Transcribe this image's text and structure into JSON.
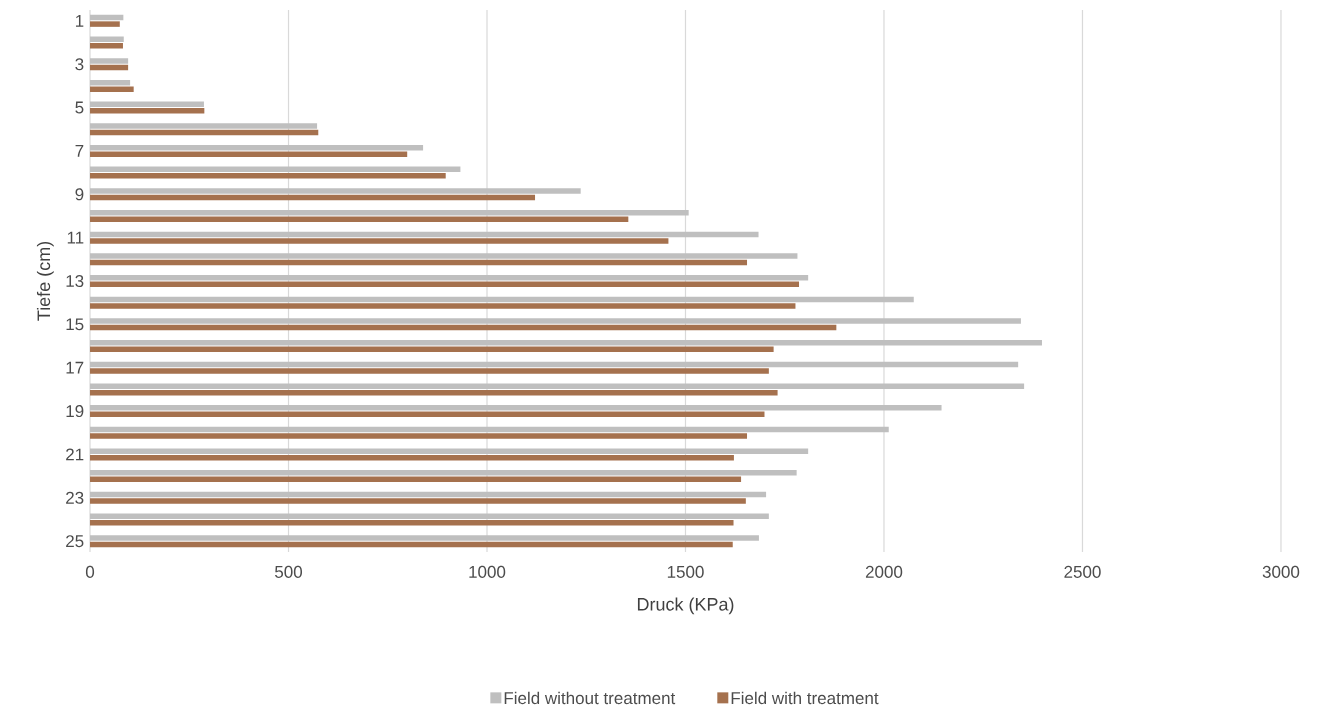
{
  "chart_data": {
    "type": "bar",
    "orientation": "horizontal",
    "xlabel": "Druck (KPa)",
    "ylabel": "Tiefe (cm)",
    "categories": [
      "1",
      null,
      "3",
      null,
      "5",
      null,
      "7",
      null,
      "9",
      null,
      "11",
      null,
      "13",
      null,
      "15",
      null,
      "17",
      null,
      "19",
      null,
      "21",
      null,
      "23",
      null,
      "25"
    ],
    "series": [
      {
        "name": "Field without treatment",
        "color": "#bfbfbf",
        "values": [
          84,
          85,
          96,
          101,
          287,
          572,
          839,
          933,
          1236,
          1508,
          1684,
          1782,
          1809,
          2075,
          2345,
          2398,
          2338,
          2353,
          2145,
          2012,
          1809,
          1780,
          1703,
          1710,
          1685
        ]
      },
      {
        "name": "Field with treatment",
        "color": "#a5714e",
        "values": [
          75,
          83,
          96,
          110,
          288,
          575,
          799,
          896,
          1121,
          1356,
          1457,
          1655,
          1786,
          1777,
          1880,
          1722,
          1710,
          1732,
          1699,
          1655,
          1622,
          1640,
          1652,
          1621,
          1619
        ]
      }
    ],
    "xlim": [
      0,
      3000
    ],
    "xticks": [
      0,
      500,
      1000,
      1500,
      2000,
      2500,
      3000
    ],
    "grid": "x",
    "legend": "bottom"
  }
}
